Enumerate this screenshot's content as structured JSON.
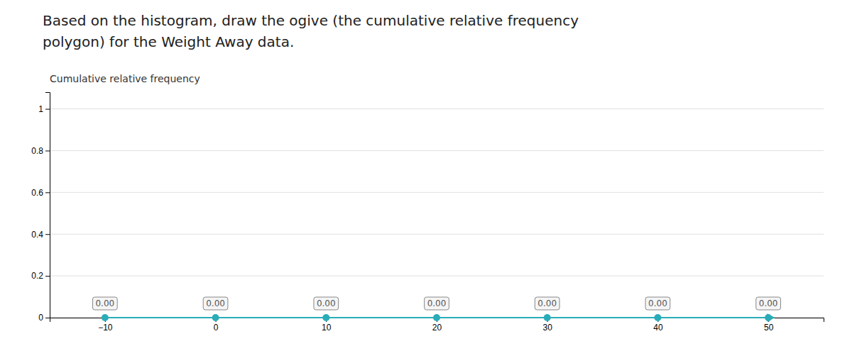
{
  "chart_data": {
    "type": "line",
    "title": [
      "Based on the histogram, draw the ogive (the cumulative relative frequency",
      "polygon) for the Weight Away data."
    ],
    "y_label": "Cumulative relative frequency",
    "x": [
      -10,
      0,
      10,
      20,
      30,
      40,
      50
    ],
    "values": [
      0.0,
      0.0,
      0.0,
      0.0,
      0.0,
      0.0,
      0.0
    ],
    "data_labels": true,
    "value_labels": [
      "0.00",
      "0.00",
      "0.00",
      "0.00",
      "0.00",
      "0.00",
      "0.00"
    ],
    "color": "#2AACB8",
    "marker": "circle",
    "xlim": [
      -15,
      55
    ],
    "ylim": [
      0,
      1.08
    ],
    "xticks": [
      -10,
      0,
      10,
      20,
      30,
      40,
      50
    ],
    "yticks": [
      0,
      0.2,
      0.4,
      0.6,
      0.8,
      1
    ],
    "grid": true
  }
}
